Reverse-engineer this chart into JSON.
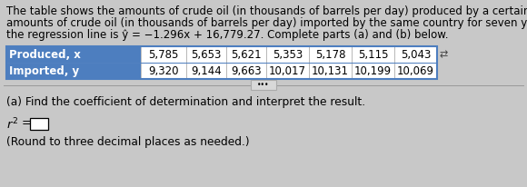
{
  "paragraph_line1": "The table shows the amounts of crude oil (in thousands of barrels per day) produced by a certain country and the",
  "paragraph_line2": "amounts of crude oil (in thousands of barrels per day) imported by the same country for seven years. The equation of",
  "paragraph_line3": "the regression line is ŷ = −1.296x + 16,779.27. Complete parts (a) and (b) below.",
  "row1_label": "Produced, x",
  "row2_label": "Imported, y",
  "row1_values": [
    "5,785",
    "5,653",
    "5,621",
    "5,353",
    "5,178",
    "5,115",
    "5,043"
  ],
  "row2_values": [
    "9,320",
    "9,144",
    "9,663",
    "10,017",
    "10,131",
    "10,199",
    "10,069"
  ],
  "part_a_text": "(a) Find the coefficient of determination and interpret the result.",
  "box_note": "(Round to three decimal places as needed.)",
  "label_bg": "#4d7ebf",
  "table_border_color": "#4d7ebf",
  "cell_bg": "#ffffff",
  "label_text_color": "#ffffff",
  "body_bg": "#c8c8c8",
  "divider_color": "#999999",
  "btn_bg": "#d8d8d8",
  "btn_border": "#aaaaaa",
  "font_size_para": 8.5,
  "font_size_table": 8.5,
  "font_size_part": 8.8
}
